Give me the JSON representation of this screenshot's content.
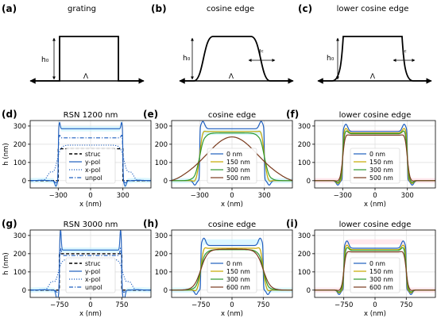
{
  "colors": {
    "blue": "#1f5fbf",
    "yellow": "#c8a800",
    "green": "#2e9a2e",
    "brown": "#7a3b1e",
    "cyan_fill": "#bff0ff",
    "pink_fill": "#ffd6de"
  },
  "schematics": [
    {
      "letter": "(a)",
      "title": "grating",
      "h_label": "h₀",
      "period_label": "Λ",
      "edge_label": ""
    },
    {
      "letter": "(b)",
      "title": "cosine edge",
      "h_label": "h₀",
      "period_label": "Λ",
      "edge_label": "lᶜ"
    },
    {
      "letter": "(c)",
      "title": "lower cosine edge",
      "h_label": "h₀",
      "period_label": "Λ",
      "edge_label": "lᶜ"
    }
  ],
  "chart_data": [
    {
      "type": "line",
      "letter": "(d)",
      "title": "RSN 1200 nm",
      "xlabel": "x (nm)",
      "ylabel": "h (nm)",
      "xticks": [
        "−300",
        "0",
        "300"
      ],
      "yticks": [
        "0",
        "100",
        "200",
        "300"
      ],
      "xlim": [
        -560,
        560
      ],
      "ylim": [
        -40,
        330
      ],
      "xtick_values": [
        -300,
        0,
        300
      ],
      "legend": {
        "placement": "center",
        "entries": [
          {
            "name": "struc",
            "style": "dashed",
            "color": "#000000"
          },
          {
            "name": "y-pol",
            "style": "solid",
            "color": "#1f5fbf"
          },
          {
            "name": "x-pol",
            "style": "dotted",
            "color": "#1f5fbf"
          },
          {
            "name": "unpol",
            "style": "dashdot",
            "color": "#1f5fbf"
          }
        ]
      }
    },
    {
      "type": "line",
      "letter": "(e)",
      "title": "cosine edge",
      "xlabel": "x (nm)",
      "ylabel": "",
      "xticks": [
        "−300",
        "0",
        "300"
      ],
      "yticks": [
        "0",
        "100",
        "200",
        "300"
      ],
      "xlim": [
        -560,
        560
      ],
      "ylim": [
        -40,
        330
      ],
      "xtick_values": [
        -300,
        0,
        300
      ],
      "legend": {
        "placement": "bottom-center",
        "entries": [
          {
            "name": "0 nm",
            "color": "#1f5fbf"
          },
          {
            "name": "150 nm",
            "color": "#c8a800"
          },
          {
            "name": "300 nm",
            "color": "#2e9a2e"
          },
          {
            "name": "500 nm",
            "color": "#7a3b1e"
          }
        ]
      }
    },
    {
      "type": "line",
      "letter": "(f)",
      "title": "lower cosine edge",
      "xlabel": "x (nm)",
      "ylabel": "",
      "xticks": [
        "−300",
        "0",
        "300"
      ],
      "yticks": [
        "0",
        "100",
        "200",
        "300"
      ],
      "xlim": [
        -560,
        560
      ],
      "ylim": [
        -40,
        330
      ],
      "xtick_values": [
        -300,
        0,
        300
      ],
      "legend": {
        "placement": "bottom-center",
        "entries": [
          {
            "name": "0 nm",
            "color": "#1f5fbf"
          },
          {
            "name": "150 nm",
            "color": "#c8a800"
          },
          {
            "name": "300 nm",
            "color": "#2e9a2e"
          },
          {
            "name": "500 nm",
            "color": "#7a3b1e"
          }
        ]
      }
    },
    {
      "type": "line",
      "letter": "(g)",
      "title": "RSN 3000 nm",
      "xlabel": "x (nm)",
      "ylabel": "h (nm)",
      "xticks": [
        "−750",
        "0",
        "750"
      ],
      "yticks": [
        "0",
        "100",
        "200",
        "300"
      ],
      "xlim": [
        -1450,
        1450
      ],
      "ylim": [
        -40,
        330
      ],
      "xtick_values": [
        -750,
        0,
        750
      ],
      "legend": {
        "placement": "center",
        "entries": [
          {
            "name": "struc",
            "style": "dashed",
            "color": "#000000"
          },
          {
            "name": "y-pol",
            "style": "solid",
            "color": "#1f5fbf"
          },
          {
            "name": "x-pol",
            "style": "dotted",
            "color": "#1f5fbf"
          },
          {
            "name": "unpol",
            "style": "dashdot",
            "color": "#1f5fbf"
          }
        ]
      }
    },
    {
      "type": "line",
      "letter": "(h)",
      "title": "cosine edge",
      "xlabel": "x (nm)",
      "ylabel": "",
      "xticks": [
        "−750",
        "0",
        "750"
      ],
      "yticks": [
        "0",
        "100",
        "200",
        "300"
      ],
      "xlim": [
        -1450,
        1450
      ],
      "ylim": [
        -40,
        330
      ],
      "xtick_values": [
        -750,
        0,
        750
      ],
      "legend": {
        "placement": "bottom-center",
        "entries": [
          {
            "name": "0 nm",
            "color": "#1f5fbf"
          },
          {
            "name": "150 nm",
            "color": "#c8a800"
          },
          {
            "name": "300 nm",
            "color": "#2e9a2e"
          },
          {
            "name": "600 nm",
            "color": "#7a3b1e"
          }
        ]
      }
    },
    {
      "type": "line",
      "letter": "(i)",
      "title": "lower cosine edge",
      "xlabel": "x (nm)",
      "ylabel": "",
      "xticks": [
        "−750",
        "0",
        "750"
      ],
      "yticks": [
        "0",
        "100",
        "200",
        "300"
      ],
      "xlim": [
        -1450,
        1450
      ],
      "ylim": [
        -40,
        330
      ],
      "xtick_values": [
        -750,
        0,
        750
      ],
      "legend": {
        "placement": "bottom-center",
        "entries": [
          {
            "name": "0 nm",
            "color": "#1f5fbf"
          },
          {
            "name": "150 nm",
            "color": "#c8a800"
          },
          {
            "name": "300 nm",
            "color": "#2e9a2e"
          },
          {
            "name": "600 nm",
            "color": "#7a3b1e"
          }
        ]
      }
    }
  ]
}
